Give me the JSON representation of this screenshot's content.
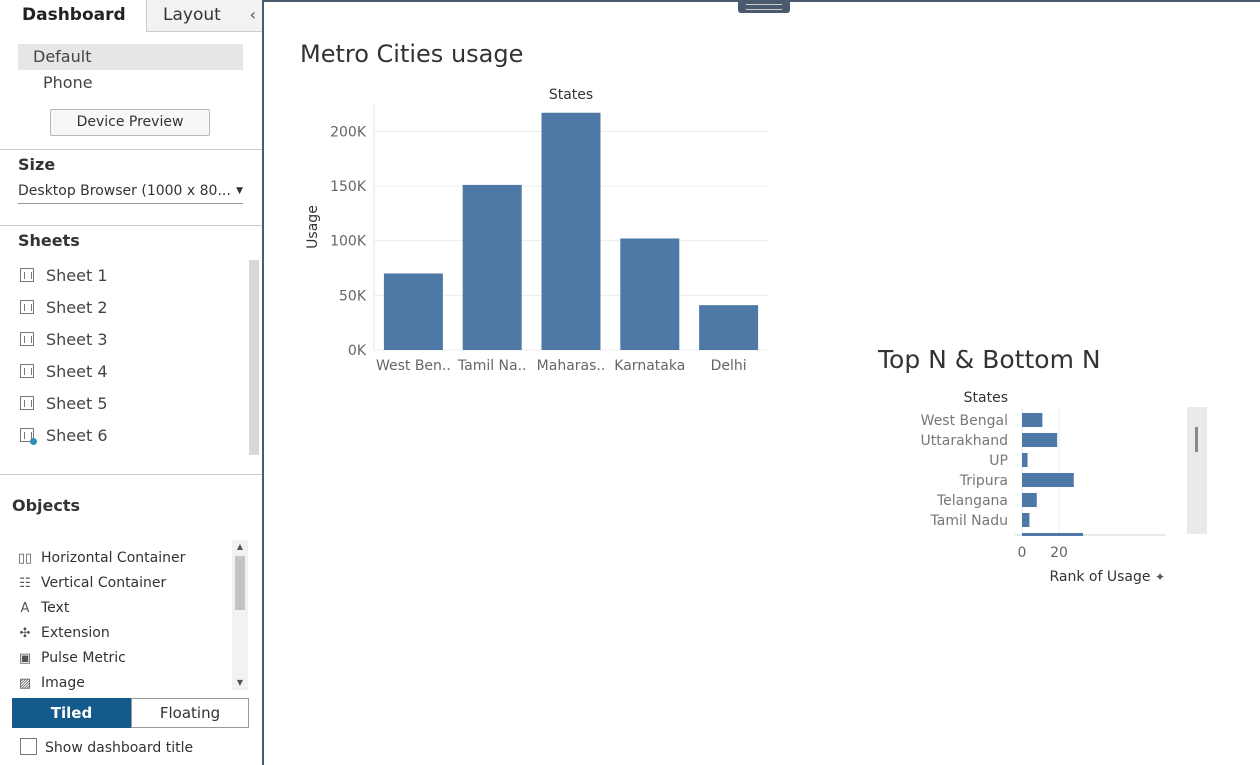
{
  "tabs": {
    "dashboard": "Dashboard",
    "layout": "Layout"
  },
  "device": {
    "default": "Default",
    "phone": "Phone",
    "preview_button": "Device Preview"
  },
  "size": {
    "title": "Size",
    "selected": "Desktop Browser (1000 x 80..."
  },
  "sheets": {
    "title": "Sheets",
    "items": [
      {
        "label": "Sheet 1"
      },
      {
        "label": "Sheet 2"
      },
      {
        "label": "Sheet 3"
      },
      {
        "label": "Sheet 4"
      },
      {
        "label": "Sheet 5"
      },
      {
        "label": "Sheet 6",
        "used": true
      }
    ]
  },
  "objects": {
    "title": "Objects",
    "items": [
      {
        "label": "Horizontal Container",
        "icon": "horizontal-container-icon"
      },
      {
        "label": "Vertical Container",
        "icon": "vertical-container-icon"
      },
      {
        "label": "Text",
        "icon": "text-icon"
      },
      {
        "label": "Extension",
        "icon": "extension-icon"
      },
      {
        "label": "Pulse Metric",
        "icon": "pulse-metric-icon"
      },
      {
        "label": "Image",
        "icon": "image-icon"
      }
    ]
  },
  "layout_mode": {
    "tiled": "Tiled",
    "floating": "Floating",
    "selected": "Tiled"
  },
  "show_title": {
    "label": "Show dashboard title",
    "checked": false
  },
  "colors": {
    "bar": "#4e79a7",
    "accent": "#125b8c"
  },
  "chart_data": [
    {
      "type": "bar",
      "title": "Metro Cities usage",
      "header": "States",
      "ylabel": "Usage",
      "categories": [
        "West Ben..",
        "Tamil Na..",
        "Maharas..",
        "Karnataka",
        "Delhi"
      ],
      "values": [
        70000,
        151000,
        217000,
        102000,
        41000
      ],
      "yticks": [
        0,
        50000,
        100000,
        150000,
        200000
      ],
      "ytick_labels": [
        "0K",
        "50K",
        "100K",
        "150K",
        "200K"
      ],
      "ylim": [
        0,
        225000
      ],
      "grid": true
    },
    {
      "type": "bar",
      "orientation": "horizontal",
      "title": "Top N & Bottom N",
      "header": "States",
      "xlabel": "Rank of Usage",
      "categories": [
        "West Bengal",
        "Uttarakhand",
        "UP",
        "Tripura",
        "Telangana",
        "Tamil Nadu"
      ],
      "values": [
        11,
        19,
        3,
        28,
        8,
        4
      ],
      "xticks": [
        0,
        20
      ],
      "xlim": [
        0,
        38
      ],
      "grid": true
    }
  ]
}
